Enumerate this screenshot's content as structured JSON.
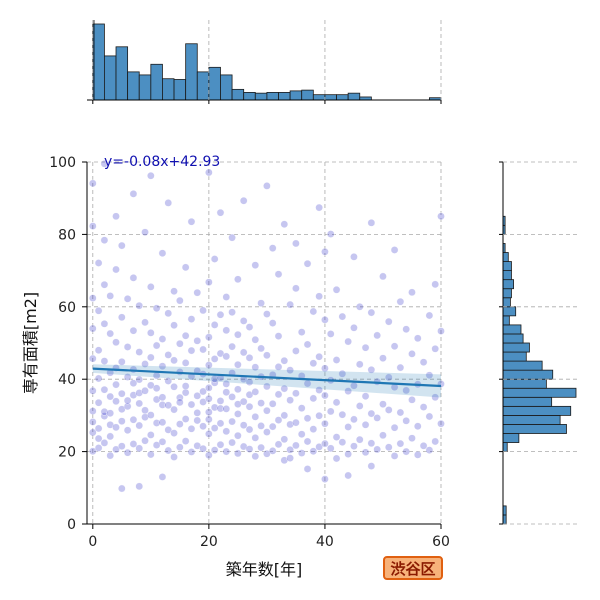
{
  "chart_data": {
    "type": "scatter",
    "xlabel": "築年数[年]",
    "ylabel": "専有面積[m2]",
    "xlim": [
      -1,
      60
    ],
    "ylim": [
      0,
      100
    ],
    "x_ticks": [
      0,
      20,
      40,
      60
    ],
    "y_ticks": [
      0,
      20,
      40,
      60,
      80,
      100
    ],
    "grid": true,
    "regression": {
      "equation_label": "y=-0.08x+42.93",
      "slope": -0.08,
      "intercept": 42.93,
      "color": "#1f77b4"
    },
    "point_color": "#3434c8",
    "hist_color": "#4c8fc2",
    "points": [
      [
        0,
        20.1
      ],
      [
        0,
        25.3
      ],
      [
        0,
        31.2
      ],
      [
        0,
        45.7
      ],
      [
        0,
        62.4
      ],
      [
        0,
        82.3
      ],
      [
        0,
        94.1
      ],
      [
        0,
        54.0
      ],
      [
        0,
        36.8
      ],
      [
        0,
        28.2
      ],
      [
        1,
        21.0
      ],
      [
        1,
        33.5
      ],
      [
        1,
        40.2
      ],
      [
        1,
        58.9
      ],
      [
        1,
        26.4
      ],
      [
        1,
        72.1
      ],
      [
        1,
        48.0
      ],
      [
        1,
        23.6
      ],
      [
        2,
        22.4
      ],
      [
        2,
        29.8
      ],
      [
        2,
        37.1
      ],
      [
        2,
        45.0
      ],
      [
        2,
        55.3
      ],
      [
        2,
        66.1
      ],
      [
        2,
        78.4
      ],
      [
        2,
        99.5
      ],
      [
        2,
        31.0
      ],
      [
        3,
        18.9
      ],
      [
        3,
        24.2
      ],
      [
        3,
        30.6
      ],
      [
        3,
        41.8
      ],
      [
        3,
        52.6
      ],
      [
        3,
        63.0
      ],
      [
        3,
        35.2
      ],
      [
        3,
        27.4
      ],
      [
        4,
        20.6
      ],
      [
        4,
        26.7
      ],
      [
        4,
        33.9
      ],
      [
        4,
        43.1
      ],
      [
        4,
        50.2
      ],
      [
        4,
        70.3
      ],
      [
        4,
        85.0
      ],
      [
        4,
        38.5
      ],
      [
        5,
        9.8
      ],
      [
        5,
        21.5
      ],
      [
        5,
        28.4
      ],
      [
        5,
        36.0
      ],
      [
        5,
        44.8
      ],
      [
        5,
        57.1
      ],
      [
        5,
        76.9
      ],
      [
        5,
        31.7
      ],
      [
        6,
        19.7
      ],
      [
        6,
        25.9
      ],
      [
        6,
        32.5
      ],
      [
        6,
        40.6
      ],
      [
        6,
        48.9
      ],
      [
        6,
        62.2
      ],
      [
        6,
        34.1
      ],
      [
        7,
        22.1
      ],
      [
        7,
        28.8
      ],
      [
        7,
        35.6
      ],
      [
        7,
        42.7
      ],
      [
        7,
        53.4
      ],
      [
        7,
        68.0
      ],
      [
        7,
        91.2
      ],
      [
        7,
        38.9
      ],
      [
        8,
        10.4
      ],
      [
        8,
        20.9
      ],
      [
        8,
        27.2
      ],
      [
        8,
        33.3
      ],
      [
        8,
        39.9
      ],
      [
        8,
        47.5
      ],
      [
        8,
        60.3
      ],
      [
        8,
        36.2
      ],
      [
        9,
        23.0
      ],
      [
        9,
        29.5
      ],
      [
        9,
        36.8
      ],
      [
        9,
        44.2
      ],
      [
        9,
        55.7
      ],
      [
        9,
        80.6
      ],
      [
        9,
        31.4
      ],
      [
        10,
        19.2
      ],
      [
        10,
        24.6
      ],
      [
        10,
        30.1
      ],
      [
        10,
        38.3
      ],
      [
        10,
        46.0
      ],
      [
        10,
        52.8
      ],
      [
        10,
        65.5
      ],
      [
        10,
        96.2
      ],
      [
        11,
        21.8
      ],
      [
        11,
        27.9
      ],
      [
        11,
        34.4
      ],
      [
        11,
        41.0
      ],
      [
        11,
        49.3
      ],
      [
        11,
        59.6
      ],
      [
        11,
        37.5
      ],
      [
        12,
        13.0
      ],
      [
        12,
        22.7
      ],
      [
        12,
        28.1
      ],
      [
        12,
        35.0
      ],
      [
        12,
        43.6
      ],
      [
        12,
        51.1
      ],
      [
        12,
        74.8
      ],
      [
        12,
        32.9
      ],
      [
        13,
        20.3
      ],
      [
        13,
        26.0
      ],
      [
        13,
        32.8
      ],
      [
        13,
        39.5
      ],
      [
        13,
        46.7
      ],
      [
        13,
        58.2
      ],
      [
        13,
        88.7
      ],
      [
        14,
        18.5
      ],
      [
        14,
        25.1
      ],
      [
        14,
        31.6
      ],
      [
        14,
        37.9
      ],
      [
        14,
        45.2
      ],
      [
        14,
        54.9
      ],
      [
        14,
        64.3
      ],
      [
        15,
        21.2
      ],
      [
        15,
        27.6
      ],
      [
        15,
        34.9
      ],
      [
        15,
        42.0
      ],
      [
        15,
        49.8
      ],
      [
        15,
        61.7
      ],
      [
        15,
        33.6
      ],
      [
        16,
        22.9
      ],
      [
        16,
        29.0
      ],
      [
        16,
        36.3
      ],
      [
        16,
        44.5
      ],
      [
        16,
        52.0
      ],
      [
        16,
        70.9
      ],
      [
        16,
        38.1
      ],
      [
        17,
        19.9
      ],
      [
        17,
        26.3
      ],
      [
        17,
        33.0
      ],
      [
        17,
        40.8
      ],
      [
        17,
        47.9
      ],
      [
        17,
        56.6
      ],
      [
        17,
        83.5
      ],
      [
        18,
        21.6
      ],
      [
        18,
        28.6
      ],
      [
        18,
        35.4
      ],
      [
        18,
        42.3
      ],
      [
        18,
        50.6
      ],
      [
        18,
        63.9
      ],
      [
        18,
        30.7
      ],
      [
        19,
        20.8
      ],
      [
        19,
        27.0
      ],
      [
        19,
        33.7
      ],
      [
        19,
        41.4
      ],
      [
        19,
        48.2
      ],
      [
        19,
        59.0
      ],
      [
        19,
        36.6
      ],
      [
        20,
        19.0
      ],
      [
        20,
        24.9
      ],
      [
        20,
        30.9
      ],
      [
        20,
        37.6
      ],
      [
        20,
        43.9
      ],
      [
        20,
        51.6
      ],
      [
        20,
        66.8
      ],
      [
        20,
        97.1
      ],
      [
        20,
        28.9
      ],
      [
        20,
        34.6
      ],
      [
        21,
        20.4
      ],
      [
        21,
        26.5
      ],
      [
        21,
        32.2
      ],
      [
        21,
        39.0
      ],
      [
        21,
        45.6
      ],
      [
        21,
        55.0
      ],
      [
        21,
        73.2
      ],
      [
        21,
        40.1
      ],
      [
        22,
        21.9
      ],
      [
        22,
        27.8
      ],
      [
        22,
        34.0
      ],
      [
        22,
        40.4
      ],
      [
        22,
        47.1
      ],
      [
        22,
        57.8
      ],
      [
        22,
        86.0
      ],
      [
        22,
        31.9
      ],
      [
        23,
        20.0
      ],
      [
        23,
        25.6
      ],
      [
        23,
        31.8
      ],
      [
        23,
        38.7
      ],
      [
        23,
        46.3
      ],
      [
        23,
        53.5
      ],
      [
        23,
        62.7
      ],
      [
        23,
        36.4
      ],
      [
        24,
        22.5
      ],
      [
        24,
        28.3
      ],
      [
        24,
        35.1
      ],
      [
        24,
        41.7
      ],
      [
        24,
        49.0
      ],
      [
        24,
        58.5
      ],
      [
        24,
        79.1
      ],
      [
        25,
        19.5
      ],
      [
        25,
        24.4
      ],
      [
        25,
        30.4
      ],
      [
        25,
        37.2
      ],
      [
        25,
        44.0
      ],
      [
        25,
        52.3
      ],
      [
        25,
        67.6
      ],
      [
        25,
        33.1
      ],
      [
        26,
        21.4
      ],
      [
        26,
        27.3
      ],
      [
        26,
        33.8
      ],
      [
        26,
        40.0
      ],
      [
        26,
        47.4
      ],
      [
        26,
        56.1
      ],
      [
        26,
        89.3
      ],
      [
        27,
        20.7
      ],
      [
        27,
        26.1
      ],
      [
        27,
        32.4
      ],
      [
        27,
        39.2
      ],
      [
        27,
        45.9
      ],
      [
        27,
        54.4
      ],
      [
        27,
        35.7
      ],
      [
        28,
        18.7
      ],
      [
        28,
        23.8
      ],
      [
        28,
        29.6
      ],
      [
        28,
        36.5
      ],
      [
        28,
        43.3
      ],
      [
        28,
        50.9
      ],
      [
        28,
        71.5
      ],
      [
        29,
        21.1
      ],
      [
        29,
        27.1
      ],
      [
        29,
        33.4
      ],
      [
        29,
        40.7
      ],
      [
        29,
        48.5
      ],
      [
        29,
        61.0
      ],
      [
        30,
        19.4
      ],
      [
        30,
        25.4
      ],
      [
        30,
        31.3
      ],
      [
        30,
        38.0
      ],
      [
        30,
        46.6
      ],
      [
        30,
        58.0
      ],
      [
        30,
        93.4
      ],
      [
        31,
        20.2
      ],
      [
        31,
        26.9
      ],
      [
        31,
        33.2
      ],
      [
        31,
        41.2
      ],
      [
        31,
        55.5
      ],
      [
        31,
        76.2
      ],
      [
        32,
        22.0
      ],
      [
        32,
        28.7
      ],
      [
        32,
        35.8
      ],
      [
        32,
        43.4
      ],
      [
        32,
        51.9
      ],
      [
        32,
        69.0
      ],
      [
        33,
        17.6
      ],
      [
        33,
        23.4
      ],
      [
        33,
        30.0
      ],
      [
        33,
        37.4
      ],
      [
        33,
        45.1
      ],
      [
        33,
        82.8
      ],
      [
        34,
        20.5
      ],
      [
        34,
        27.5
      ],
      [
        34,
        34.2
      ],
      [
        34,
        42.5
      ],
      [
        34,
        60.6
      ],
      [
        34,
        18.2
      ],
      [
        35,
        21.7
      ],
      [
        35,
        28.0
      ],
      [
        35,
        36.1
      ],
      [
        35,
        47.8
      ],
      [
        35,
        65.1
      ],
      [
        35,
        77.5
      ],
      [
        36,
        19.6
      ],
      [
        36,
        24.8
      ],
      [
        36,
        32.0
      ],
      [
        36,
        40.9
      ],
      [
        36,
        53.0
      ],
      [
        37,
        15.2
      ],
      [
        37,
        22.8
      ],
      [
        37,
        29.2
      ],
      [
        37,
        38.8
      ],
      [
        37,
        49.6
      ],
      [
        37,
        71.9
      ],
      [
        38,
        20.1
      ],
      [
        38,
        26.2
      ],
      [
        38,
        34.7
      ],
      [
        38,
        44.4
      ],
      [
        38,
        58.7
      ],
      [
        39,
        21.3
      ],
      [
        39,
        29.9
      ],
      [
        39,
        37.0
      ],
      [
        39,
        46.2
      ],
      [
        39,
        62.9
      ],
      [
        39,
        87.4
      ],
      [
        40,
        12.4
      ],
      [
        40,
        22.2
      ],
      [
        40,
        27.7
      ],
      [
        40,
        35.5
      ],
      [
        40,
        43.0
      ],
      [
        40,
        56.4
      ],
      [
        40,
        75.2
      ],
      [
        41,
        20.9
      ],
      [
        41,
        31.1
      ],
      [
        41,
        39.7
      ],
      [
        41,
        52.5
      ],
      [
        41,
        80.1
      ],
      [
        42,
        18.1
      ],
      [
        42,
        24.0
      ],
      [
        42,
        33.6
      ],
      [
        42,
        45.3
      ],
      [
        42,
        64.7
      ],
      [
        43,
        22.6
      ],
      [
        43,
        30.2
      ],
      [
        43,
        41.5
      ],
      [
        43,
        57.3
      ],
      [
        44,
        19.3
      ],
      [
        44,
        26.8
      ],
      [
        44,
        36.7
      ],
      [
        44,
        50.4
      ],
      [
        44,
        13.4
      ],
      [
        45,
        21.5
      ],
      [
        45,
        28.9
      ],
      [
        45,
        38.2
      ],
      [
        45,
        54.2
      ],
      [
        45,
        73.8
      ],
      [
        46,
        23.3
      ],
      [
        46,
        32.6
      ],
      [
        46,
        44.1
      ],
      [
        46,
        60.0
      ],
      [
        47,
        19.8
      ],
      [
        47,
        27.4
      ],
      [
        47,
        35.3
      ],
      [
        47,
        48.7
      ],
      [
        48,
        16.0
      ],
      [
        48,
        22.3
      ],
      [
        48,
        30.5
      ],
      [
        48,
        42.6
      ],
      [
        48,
        58.4
      ],
      [
        48,
        83.2
      ],
      [
        49,
        20.6
      ],
      [
        49,
        29.3
      ],
      [
        49,
        39.3
      ],
      [
        49,
        52.1
      ],
      [
        50,
        24.5
      ],
      [
        50,
        33.1
      ],
      [
        50,
        45.8
      ],
      [
        50,
        68.4
      ],
      [
        51,
        21.2
      ],
      [
        51,
        31.5
      ],
      [
        51,
        40.5
      ],
      [
        51,
        55.9
      ],
      [
        52,
        18.8
      ],
      [
        52,
        26.6
      ],
      [
        52,
        37.8
      ],
      [
        52,
        49.1
      ],
      [
        52,
        75.7
      ],
      [
        53,
        22.2
      ],
      [
        53,
        30.8
      ],
      [
        53,
        43.2
      ],
      [
        53,
        61.4
      ],
      [
        54,
        20.0
      ],
      [
        54,
        28.5
      ],
      [
        54,
        36.9
      ],
      [
        54,
        53.8
      ],
      [
        55,
        23.7
      ],
      [
        55,
        34.3
      ],
      [
        55,
        47.0
      ],
      [
        55,
        64.0
      ],
      [
        56,
        19.1
      ],
      [
        56,
        27.0
      ],
      [
        56,
        38.6
      ],
      [
        56,
        51.3
      ],
      [
        57,
        21.6
      ],
      [
        57,
        32.3
      ],
      [
        57,
        44.7
      ],
      [
        58,
        20.4
      ],
      [
        58,
        29.7
      ],
      [
        58,
        41.1
      ],
      [
        58,
        57.6
      ],
      [
        59,
        22.8
      ],
      [
        59,
        35.0
      ],
      [
        59,
        48.4
      ],
      [
        59,
        66.2
      ],
      [
        60,
        85.0
      ],
      [
        60,
        27.7
      ],
      [
        60,
        38.7
      ],
      [
        60,
        53.3
      ]
    ],
    "x_hist": {
      "bin_width": 2,
      "bin_start": 0,
      "counts": [
        100,
        58,
        70,
        37,
        33,
        47,
        28,
        27,
        74,
        37,
        43,
        33,
        14,
        10,
        9,
        10,
        10,
        12,
        13,
        7,
        7,
        7,
        9,
        4,
        0,
        0,
        0,
        0,
        0,
        3
      ]
    },
    "y_hist": {
      "bin_width": 2.5,
      "bin_start": 0,
      "counts": [
        3,
        3,
        0,
        0,
        0,
        0,
        0,
        0,
        4,
        15,
        60,
        54,
        64,
        46,
        69,
        41,
        47,
        37,
        22,
        25,
        19,
        17,
        6,
        12,
        7,
        8,
        10,
        8,
        8,
        5,
        2,
        0,
        2,
        2,
        0,
        0,
        0,
        0,
        0,
        0
      ],
      "note_unused": ""
    }
  },
  "badge": {
    "label": "渋谷区"
  }
}
